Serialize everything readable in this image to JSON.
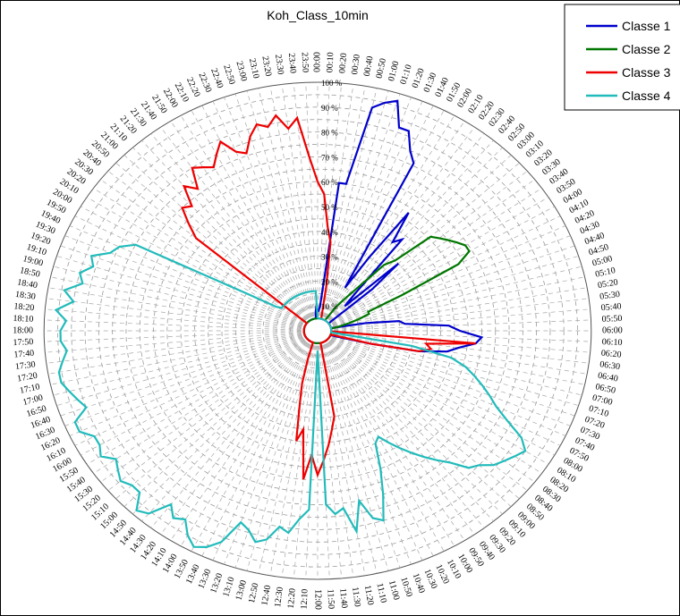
{
  "chart_data": {
    "type": "radar",
    "title": "Koh_Class_10min",
    "radial_ticks": [
      "10 %",
      "20 %",
      "30 %",
      "40 %",
      "50 %",
      "60 %",
      "70 %",
      "80 %",
      "90 %",
      "100 %"
    ],
    "angular_labels": [
      "00:00",
      "00:10",
      "00:20",
      "00:30",
      "00:40",
      "00:50",
      "01:00",
      "01:10",
      "01:20",
      "01:30",
      "01:40",
      "01:50",
      "02:00",
      "02:10",
      "02:20",
      "02:30",
      "02:40",
      "02:50",
      "03:00",
      "03:10",
      "03:20",
      "03:30",
      "03:40",
      "03:50",
      "04:00",
      "04:10",
      "04:20",
      "04:30",
      "04:40",
      "04:50",
      "05:00",
      "05:10",
      "05:20",
      "05:30",
      "05:40",
      "05:50",
      "06:00",
      "06:10",
      "06:20",
      "06:30",
      "06:40",
      "06:50",
      "07:00",
      "07:10",
      "07:20",
      "07:30",
      "07:40",
      "07:50",
      "08:00",
      "08:10",
      "08:20",
      "08:30",
      "08:40",
      "08:50",
      "09:00",
      "09:10",
      "09:20",
      "09:30",
      "09:40",
      "09:50",
      "10:00",
      "10:10",
      "10:20",
      "10:30",
      "10:40",
      "10:50",
      "11:00",
      "11:10",
      "11:20",
      "11:30",
      "11:40",
      "11:50",
      "12:00",
      "12:10",
      "12:20",
      "12:30",
      "12:40",
      "12:50",
      "13:00",
      "13:10",
      "13:20",
      "13:30",
      "13:40",
      "13:50",
      "14:00",
      "14:10",
      "14:20",
      "14:30",
      "14:40",
      "14:50",
      "15:00",
      "15:10",
      "15:20",
      "15:30",
      "15:40",
      "15:50",
      "16:00",
      "16:10",
      "16:20",
      "16:30",
      "16:40",
      "16:50",
      "17:00",
      "17:10",
      "17:20",
      "17:30",
      "17:40",
      "17:50",
      "18:00",
      "18:10",
      "18:20",
      "18:30",
      "18:40",
      "18:50",
      "19:00",
      "19:10",
      "19:20",
      "19:30",
      "19:40",
      "19:50",
      "20:00",
      "20:10",
      "20:20",
      "20:30",
      "20:40",
      "20:50",
      "21:00",
      "21:10",
      "21:20",
      "21:30",
      "21:40",
      "21:50",
      "22:00",
      "22:10",
      "22:20",
      "22:30",
      "22:40",
      "22:50",
      "23:00",
      "23:10",
      "23:20",
      "23:30",
      "23:40",
      "23:50"
    ],
    "rmax": 100,
    "grid": true,
    "legend_position": "top-right",
    "series": [
      {
        "name": "Classe 1",
        "color": "#0000cc",
        "values": [
          8,
          8,
          10,
          60,
          60,
          92,
          95,
          97,
          87,
          87,
          80,
          76,
          20,
          35,
          58,
          45,
          48,
          20,
          14,
          40,
          26,
          6,
          5,
          5,
          5,
          5,
          5,
          5,
          5,
          5,
          5,
          5,
          18,
          30,
          32,
          48,
          52,
          60,
          58,
          52,
          48,
          38,
          20,
          9,
          5,
          5,
          5,
          5,
          5,
          5,
          5,
          5,
          5,
          5,
          5,
          5,
          5,
          5,
          5,
          5,
          5,
          5,
          5,
          5,
          5,
          5,
          5,
          5,
          5,
          5,
          5,
          5,
          5,
          5,
          5,
          5,
          5,
          5,
          5,
          5,
          5,
          5,
          5,
          5,
          5,
          5,
          5,
          5,
          5,
          5,
          5,
          5,
          5,
          5,
          5,
          5,
          5,
          5,
          5,
          5,
          5,
          5,
          5,
          5,
          5,
          5,
          5,
          5,
          5,
          5,
          5,
          5,
          5,
          5,
          5,
          5,
          5,
          5,
          5,
          5,
          5,
          5,
          5,
          5,
          5,
          5,
          5,
          5,
          5,
          5,
          5,
          5,
          5,
          5,
          5,
          5,
          5,
          5,
          5,
          5,
          5,
          5,
          8,
          10
        ]
      },
      {
        "name": "Classe 2",
        "color": "#007700",
        "values": [
          5,
          5,
          5,
          5,
          5,
          5,
          5,
          5,
          5,
          5,
          5,
          5,
          5,
          5,
          12,
          16,
          22,
          36,
          40,
          56,
          58,
          60,
          62,
          64,
          64,
          58,
          34,
          20,
          20,
          16,
          12,
          8,
          5,
          5,
          5,
          5,
          5,
          5,
          5,
          5,
          5,
          5,
          5,
          5,
          5,
          5,
          5,
          5,
          5,
          5,
          5,
          5,
          5,
          5,
          5,
          5,
          5,
          5,
          5,
          5,
          5,
          5,
          5,
          5,
          5,
          5,
          5,
          5,
          5,
          5,
          5,
          5,
          5,
          5,
          5,
          5,
          5,
          5,
          5,
          5,
          5,
          5,
          5,
          5,
          5,
          5,
          5,
          5,
          5,
          5,
          5,
          5,
          5,
          5,
          5,
          5,
          5,
          5,
          5,
          5,
          5,
          5,
          5,
          5,
          5,
          5,
          5,
          5,
          5,
          5,
          5,
          5,
          5,
          5,
          5,
          5,
          5,
          5,
          5,
          5,
          5,
          5,
          5,
          5,
          5,
          5,
          5,
          5,
          5,
          5,
          5,
          5,
          5,
          5,
          5,
          5,
          5,
          5,
          5,
          5,
          5,
          5,
          5,
          5
        ]
      },
      {
        "name": "Classe 3",
        "color": "#ee0000",
        "values": [
          60,
          55,
          42,
          36,
          18,
          8,
          5,
          5,
          5,
          5,
          5,
          5,
          5,
          5,
          5,
          5,
          5,
          5,
          5,
          5,
          5,
          5,
          5,
          5,
          5,
          5,
          5,
          5,
          5,
          5,
          5,
          5,
          5,
          5,
          5,
          5,
          5,
          5,
          58,
          40,
          42,
          38,
          20,
          5,
          5,
          5,
          5,
          5,
          5,
          5,
          5,
          5,
          5,
          5,
          5,
          5,
          5,
          5,
          5,
          5,
          5,
          5,
          5,
          5,
          5,
          5,
          5,
          5,
          35,
          40,
          46,
          52,
          58,
          50,
          60,
          40,
          45,
          30,
          22,
          12,
          5,
          5,
          5,
          5,
          5,
          5,
          5,
          5,
          5,
          5,
          5,
          5,
          5,
          5,
          5,
          5,
          5,
          5,
          5,
          5,
          5,
          5,
          5,
          5,
          5,
          5,
          5,
          5,
          5,
          5,
          5,
          5,
          5,
          5,
          5,
          5,
          5,
          5,
          5,
          5,
          5,
          5,
          5,
          5,
          58,
          64,
          70,
          68,
          76,
          72,
          80,
          78,
          76,
          80,
          84,
          78,
          76,
          82,
          86,
          84,
          88,
          82,
          86,
          70
        ]
      },
      {
        "name": "Classe 4",
        "color": "#22bbbb",
        "values": [
          5,
          5,
          5,
          5,
          5,
          5,
          5,
          5,
          5,
          5,
          5,
          5,
          5,
          5,
          5,
          5,
          5,
          5,
          5,
          5,
          5,
          5,
          5,
          5,
          5,
          5,
          5,
          5,
          5,
          5,
          5,
          5,
          5,
          5,
          5,
          5,
          5,
          5,
          5,
          5,
          35,
          50,
          56,
          60,
          64,
          68,
          72,
          78,
          86,
          90,
          88,
          86,
          84,
          80,
          78,
          72,
          68,
          64,
          60,
          56,
          52,
          48,
          50,
          60,
          70,
          80,
          78,
          70,
          82,
          72,
          74,
          70,
          8,
          72,
          76,
          82,
          80,
          86,
          88,
          84,
          82,
          92,
          96,
          98,
          95,
          90,
          92,
          88,
          96,
          98,
          92,
          92,
          94,
          92,
          90,
          94,
          92,
          92,
          96,
          96,
          90,
          92,
          94,
          96,
          96,
          94,
          92,
          94,
          94,
          92,
          96,
          90,
          94,
          88,
          90,
          86,
          88,
          82,
          80,
          75,
          30,
          18,
          16,
          16,
          16,
          16,
          16,
          16,
          16,
          16,
          16,
          16,
          16,
          16,
          16,
          16,
          16,
          16,
          16,
          16,
          16,
          16,
          16,
          16
        ]
      }
    ]
  }
}
